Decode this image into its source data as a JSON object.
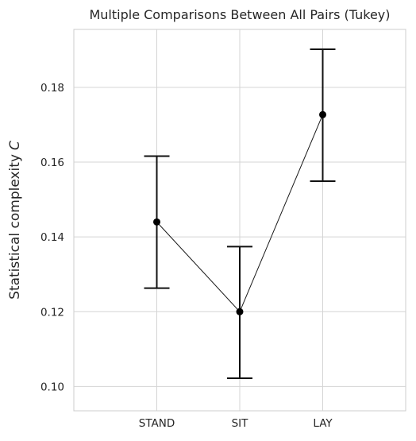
{
  "chart_data": {
    "type": "scatter",
    "title": "Multiple Comparisons Between All Pairs (Tukey)",
    "xlabel": "",
    "ylabel": "Statistical complexity",
    "ylabel_symbol": "C",
    "categories": [
      "STAND",
      "SIT",
      "LAY"
    ],
    "series": [
      {
        "values": [
          0.144,
          0.12,
          0.1727
        ],
        "error_lower": [
          0.1263,
          0.1022,
          0.1549
        ],
        "error_upper": [
          0.1616,
          0.1374,
          0.1902
        ]
      }
    ],
    "ylim": [
      0.0935,
      0.1955
    ],
    "yticks": [
      0.1,
      0.12,
      0.14,
      0.16,
      0.18
    ],
    "ytick_labels": [
      "0.10",
      "0.12",
      "0.14",
      "0.16",
      "0.18"
    ],
    "grid": true,
    "legend": "none"
  }
}
